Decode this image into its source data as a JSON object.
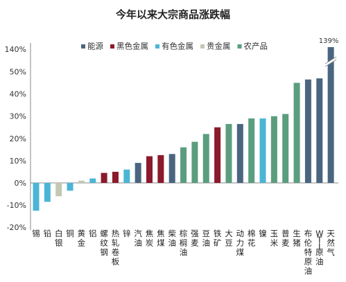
{
  "chart_data": {
    "type": "bar",
    "title": "今年以来大宗商品涨跌幅",
    "yticks": [
      "-20%",
      "-10%",
      "0%",
      "10%",
      "20%",
      "30%",
      "40%",
      "50%",
      "140%"
    ],
    "ylim": [
      -20,
      50
    ],
    "axis_break": {
      "below": 50,
      "top_label": "140%"
    },
    "legend_position": "top",
    "groups": [
      {
        "name": "能源",
        "color": "#4a6580"
      },
      {
        "name": "黑色金属",
        "color": "#8b1a2c"
      },
      {
        "name": "有色金属",
        "color": "#4bb5d6"
      },
      {
        "name": "贵金属",
        "color": "#c3c8b4"
      },
      {
        "name": "农产品",
        "color": "#5a9e7e"
      }
    ],
    "categories": [
      "锡",
      "铅",
      "白银",
      "铜",
      "黄金",
      "铝",
      "螺纹钢",
      "热轧卷板",
      "锌",
      "汽油",
      "焦炭",
      "焦煤",
      "柴油",
      "棕榈油",
      "强麦",
      "豆油",
      "铁矿",
      "大豆",
      "动力煤",
      "棉花",
      "镍",
      "玉米",
      "普麦",
      "生猪",
      "布伦特原油",
      "WTI原油",
      "天然气"
    ],
    "groups_by_bar": [
      "有色金属",
      "有色金属",
      "贵金属",
      "有色金属",
      "贵金属",
      "有色金属",
      "黑色金属",
      "黑色金属",
      "有色金属",
      "能源",
      "黑色金属",
      "黑色金属",
      "能源",
      "农产品",
      "农产品",
      "农产品",
      "黑色金属",
      "农产品",
      "能源",
      "农产品",
      "有色金属",
      "农产品",
      "农产品",
      "农产品",
      "能源",
      "能源",
      "能源"
    ],
    "values": [
      -12.5,
      -8.5,
      -6,
      -3.5,
      1,
      2,
      4.5,
      5,
      6,
      9,
      12,
      12.5,
      13,
      16,
      18.5,
      22,
      25,
      26.5,
      26.5,
      29,
      29,
      30,
      31,
      45,
      46.5,
      47,
      139
    ],
    "annotations": [
      {
        "category": "天然气",
        "text": "139%"
      }
    ]
  }
}
